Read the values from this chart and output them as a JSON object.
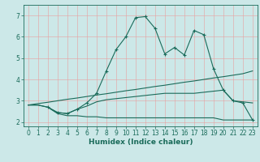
{
  "xlabel": "Humidex (Indice chaleur)",
  "bg_color": "#cce8e8",
  "line_color": "#1a6b5a",
  "xlim": [
    -0.5,
    23.5
  ],
  "ylim": [
    1.8,
    7.5
  ],
  "yticks": [
    2,
    3,
    4,
    5,
    6,
    7
  ],
  "xticks": [
    0,
    1,
    2,
    3,
    4,
    5,
    6,
    7,
    8,
    9,
    10,
    11,
    12,
    13,
    14,
    15,
    16,
    17,
    18,
    19,
    20,
    21,
    22,
    23
  ],
  "lines": [
    {
      "x": [
        0,
        1,
        2,
        3,
        4,
        5,
        6,
        7,
        8,
        9,
        10,
        11,
        12,
        13,
        14,
        15,
        16,
        17,
        18,
        19,
        20,
        21,
        22,
        23
      ],
      "y": [
        2.8,
        2.8,
        2.7,
        2.4,
        2.3,
        2.3,
        2.25,
        2.25,
        2.2,
        2.2,
        2.2,
        2.2,
        2.2,
        2.2,
        2.2,
        2.2,
        2.2,
        2.2,
        2.2,
        2.2,
        2.1,
        2.1,
        2.1,
        2.1
      ],
      "marker": false
    },
    {
      "x": [
        0,
        1,
        2,
        3,
        4,
        5,
        6,
        7,
        8,
        9,
        10,
        11,
        12,
        13,
        14,
        15,
        16,
        17,
        18,
        19,
        20,
        21,
        22,
        23
      ],
      "y": [
        2.8,
        2.87,
        2.93,
        3.0,
        3.07,
        3.13,
        3.2,
        3.27,
        3.33,
        3.4,
        3.47,
        3.53,
        3.6,
        3.67,
        3.73,
        3.8,
        3.87,
        3.93,
        4.0,
        4.07,
        4.13,
        4.2,
        4.27,
        4.4
      ],
      "marker": false
    },
    {
      "x": [
        0,
        1,
        2,
        3,
        4,
        5,
        6,
        7,
        8,
        9,
        10,
        11,
        12,
        13,
        14,
        15,
        16,
        17,
        18,
        19,
        20,
        21,
        22,
        23
      ],
      "y": [
        2.8,
        2.8,
        2.7,
        2.45,
        2.4,
        2.6,
        2.75,
        2.95,
        3.05,
        3.1,
        3.15,
        3.2,
        3.25,
        3.3,
        3.35,
        3.35,
        3.35,
        3.35,
        3.4,
        3.45,
        3.5,
        3.0,
        2.95,
        2.9
      ],
      "marker": false
    },
    {
      "x": [
        2,
        3,
        4,
        5,
        6,
        7,
        8,
        9,
        10,
        11,
        12,
        13,
        14,
        15,
        16,
        17,
        18,
        19,
        20,
        21,
        22,
        23
      ],
      "y": [
        2.7,
        2.45,
        2.4,
        2.6,
        2.9,
        3.35,
        4.4,
        5.4,
        6.0,
        6.9,
        6.95,
        6.4,
        5.2,
        5.5,
        5.15,
        6.3,
        6.1,
        4.5,
        3.5,
        3.0,
        2.9,
        2.1
      ],
      "marker": true
    }
  ]
}
